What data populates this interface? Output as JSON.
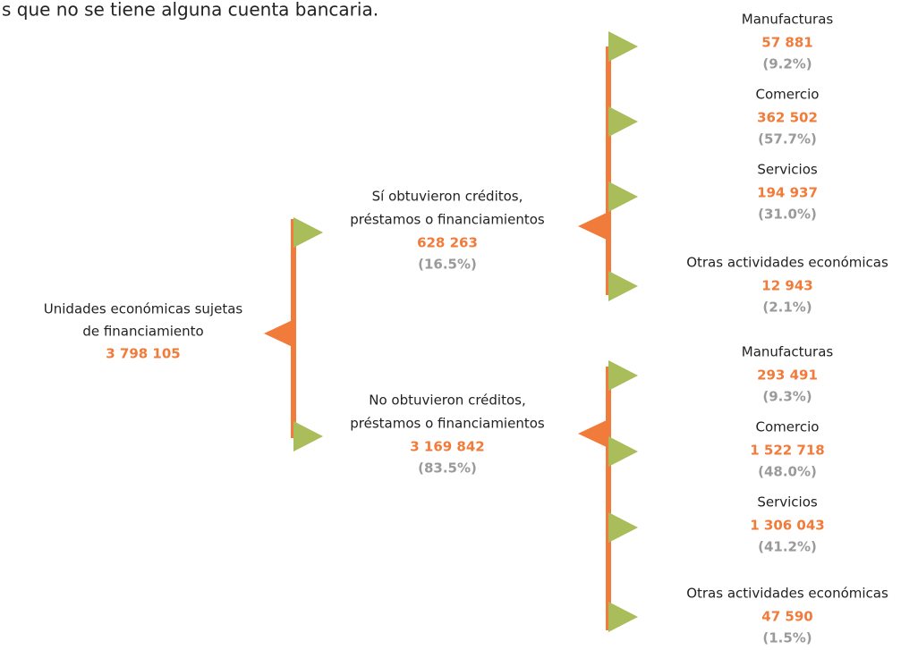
{
  "header": {
    "text": "s que no se tiene alguna cuenta bancaria."
  },
  "root": {
    "label_lines": [
      "Unidades económicas sujetas",
      "de financiamiento"
    ],
    "value": "3 798 105"
  },
  "branches": [
    {
      "label_lines": [
        "Sí obtuvieron créditos,",
        "préstamos o financiamientos"
      ],
      "value": "628 263",
      "percent": "(16.5%)",
      "children": [
        {
          "label": "Manufacturas",
          "value": "57 881",
          "percent": "(9.2%)"
        },
        {
          "label": "Comercio",
          "value": "362 502",
          "percent": "(57.7%)"
        },
        {
          "label": "Servicios",
          "value": "194 937",
          "percent": "(31.0%)"
        },
        {
          "label": "Otras actividades económicas",
          "value": "12 943",
          "percent": "(2.1%)"
        }
      ]
    },
    {
      "label_lines": [
        "No obtuvieron créditos,",
        "préstamos o financiamientos"
      ],
      "value": "3 169 842",
      "percent": "(83.5%)",
      "children": [
        {
          "label": "Manufacturas",
          "value": "293 491",
          "percent": "(9.3%)"
        },
        {
          "label": "Comercio",
          "value": "1 522 718",
          "percent": "(48.0%)"
        },
        {
          "label": "Servicios",
          "value": "1 306 043",
          "percent": "(41.2%)"
        },
        {
          "label": "Otras actividades económicas",
          "value": "47 590",
          "percent": "(1.5%)"
        }
      ]
    }
  ]
}
